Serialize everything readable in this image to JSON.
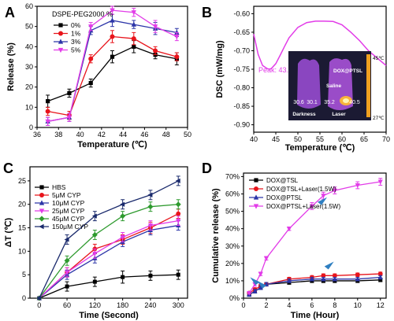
{
  "chart_data": [
    {
      "panel": "A",
      "type": "line",
      "xlabel": "Temperature (℃)",
      "ylabel": "Release (%)",
      "xlim": [
        36,
        50
      ],
      "ylim": [
        0,
        60
      ],
      "xticks": [
        36,
        38,
        40,
        42,
        44,
        46,
        48,
        50
      ],
      "yticks": [
        0,
        10,
        20,
        30,
        40,
        50,
        60
      ],
      "legend_title": "DSPE-PEG2000 %",
      "legend_position": "top-left",
      "x": [
        37,
        39,
        41,
        43,
        45,
        47,
        49
      ],
      "series": [
        {
          "name": "0%",
          "color": "#000000",
          "marker": "square",
          "values": [
            13,
            17,
            22,
            35,
            40,
            36,
            34
          ],
          "errors": [
            3,
            2,
            2,
            3,
            3,
            2,
            3
          ]
        },
        {
          "name": "1%",
          "color": "#e8141b",
          "marker": "circle",
          "values": [
            8,
            6,
            34,
            45,
            44,
            38,
            35
          ],
          "errors": [
            2,
            2,
            2,
            3,
            3,
            2,
            2
          ]
        },
        {
          "name": "3%",
          "color": "#2c35a8",
          "marker": "triangle-up",
          "values": [
            3,
            5,
            48,
            53,
            51,
            49,
            47
          ],
          "errors": [
            2,
            2,
            2,
            3,
            2,
            3,
            2
          ]
        },
        {
          "name": "5%",
          "color": "#e23ce8",
          "marker": "triangle-down",
          "values": [
            3,
            5,
            50,
            58,
            57,
            50,
            45
          ],
          "errors": [
            2,
            2,
            2,
            2,
            2,
            3,
            2
          ]
        }
      ]
    },
    {
      "panel": "B",
      "type": "line",
      "xlabel": "Temperature (℃)",
      "ylabel": "DSC (mW/mg)",
      "xlim": [
        40,
        70
      ],
      "ylim": [
        -0.92,
        -0.58
      ],
      "xticks": [
        40,
        45,
        50,
        55,
        60,
        65,
        70
      ],
      "yticks": [
        -0.9,
        -0.85,
        -0.8,
        -0.75,
        -0.7,
        -0.65,
        -0.6
      ],
      "ytick_labels": [
        "-0.90",
        "-0.85",
        "-0.80",
        "-0.75",
        "-0.70",
        "-0.65",
        "-0.60"
      ],
      "annotation": "Peak: 43.1 ℃",
      "series": [
        {
          "color": "#e23ce8",
          "x": [
            40,
            41,
            42,
            43,
            43.5,
            44,
            45,
            46,
            47,
            48,
            50,
            52,
            54,
            56,
            58,
            60,
            62,
            64,
            66,
            68,
            70
          ],
          "values": [
            -0.655,
            -0.71,
            -0.74,
            -0.748,
            -0.75,
            -0.748,
            -0.735,
            -0.712,
            -0.688,
            -0.665,
            -0.637,
            -0.624,
            -0.62,
            -0.62,
            -0.621,
            -0.63,
            -0.65,
            -0.673,
            -0.7,
            -0.72,
            -0.74
          ]
        }
      ],
      "inset": {
        "labels": [
          "DOX@PTSL",
          "Saline",
          "Darkness",
          "Laser"
        ],
        "values": [
          "30.6",
          "30.1",
          "35.2",
          "40.5"
        ],
        "scale_max": "45℃",
        "scale_min": "27℃"
      }
    },
    {
      "panel": "C",
      "type": "line",
      "xlabel": "Time (Second)",
      "ylabel": "ΔT (℃)",
      "xlim": [
        -20,
        320
      ],
      "ylim": [
        0,
        28
      ],
      "xticks": [
        0,
        60,
        120,
        180,
        240,
        300
      ],
      "yticks": [
        0,
        5,
        10,
        15,
        20,
        25
      ],
      "legend_position": "top-left",
      "x": [
        0,
        60,
        120,
        180,
        240,
        300
      ],
      "series": [
        {
          "name": "HBS",
          "color": "#000000",
          "marker": "square",
          "values": [
            0,
            2.5,
            3.5,
            4.5,
            4.8,
            5
          ],
          "errors": [
            0.3,
            1,
            1,
            1.3,
            1,
            1
          ]
        },
        {
          "name": "5μM CYP",
          "color": "#e8141b",
          "marker": "circle",
          "values": [
            0,
            5.5,
            10.5,
            12.5,
            15,
            18
          ],
          "errors": [
            0.3,
            1,
            1,
            1,
            1.2,
            1
          ]
        },
        {
          "name": "10μM CYP",
          "color": "#2c35a8",
          "marker": "triangle-up",
          "values": [
            0,
            5,
            8.5,
            12,
            14.5,
            15.5
          ],
          "errors": [
            0.3,
            1,
            1,
            1,
            1,
            1
          ]
        },
        {
          "name": "25μM CYP",
          "color": "#e23ce8",
          "marker": "triangle-down",
          "values": [
            0,
            5.5,
            9.5,
            13,
            15.5,
            16.5
          ],
          "errors": [
            0.3,
            1,
            1,
            1,
            1,
            1
          ]
        },
        {
          "name": "45μM CYP",
          "color": "#2e9a2e",
          "marker": "diamond",
          "values": [
            0,
            8,
            13.5,
            17.5,
            19.5,
            20
          ],
          "errors": [
            0.3,
            1,
            1,
            1,
            1,
            1
          ]
        },
        {
          "name": "150μM CYP",
          "color": "#1a2a6c",
          "marker": "triangle-left",
          "values": [
            0,
            12.5,
            17.5,
            20,
            22,
            25
          ],
          "errors": [
            0.3,
            1,
            1,
            1,
            1,
            1
          ]
        }
      ]
    },
    {
      "panel": "D",
      "type": "line",
      "xlabel": "Time (Hour)",
      "ylabel": "Cumulative release (%)",
      "xlim": [
        0,
        12.5
      ],
      "ylim": [
        0,
        72
      ],
      "xticks": [
        0,
        2,
        4,
        6,
        8,
        10,
        12
      ],
      "yticks": [
        0,
        10,
        20,
        30,
        40,
        50,
        60,
        70
      ],
      "ytick_labels": [
        "0%",
        "10%",
        "20%",
        "30%",
        "40%",
        "50%",
        "60%",
        "70%"
      ],
      "legend_position": "top-left",
      "x": [
        0.5,
        1,
        1.5,
        2,
        4,
        6,
        7,
        8,
        10,
        12
      ],
      "series": [
        {
          "name": "DOX@TSL",
          "color": "#000000",
          "marker": "square",
          "values": [
            2,
            4,
            6,
            8,
            9,
            10,
            10,
            10,
            10,
            10.5
          ],
          "errors": [
            0.5,
            1,
            1,
            1,
            1,
            1,
            1,
            1,
            1,
            1
          ]
        },
        {
          "name": "DOX@TSL+Laser(1.5W)",
          "color": "#e8141b",
          "marker": "circle",
          "values": [
            3,
            5,
            7,
            8,
            11,
            12,
            13,
            13,
            13.5,
            14
          ],
          "errors": [
            0.5,
            1,
            1,
            1,
            1,
            1,
            1,
            1,
            1,
            1
          ]
        },
        {
          "name": "DOX@PTSL",
          "color": "#2c35a8",
          "marker": "triangle-up",
          "values": [
            2,
            4,
            6,
            8,
            10,
            11,
            11,
            11,
            11,
            12
          ],
          "errors": [
            0.5,
            1,
            1,
            1,
            1,
            1,
            1,
            1,
            1,
            1
          ]
        },
        {
          "name": "DOX@PTSL+Laser(1.5W)",
          "color": "#e23ce8",
          "marker": "triangle-down",
          "values": [
            3,
            8,
            14,
            23,
            40,
            53,
            59,
            62,
            65,
            67
          ],
          "errors": [
            0.5,
            1,
            1,
            1,
            1,
            2,
            2,
            2,
            2,
            2
          ]
        }
      ]
    }
  ]
}
